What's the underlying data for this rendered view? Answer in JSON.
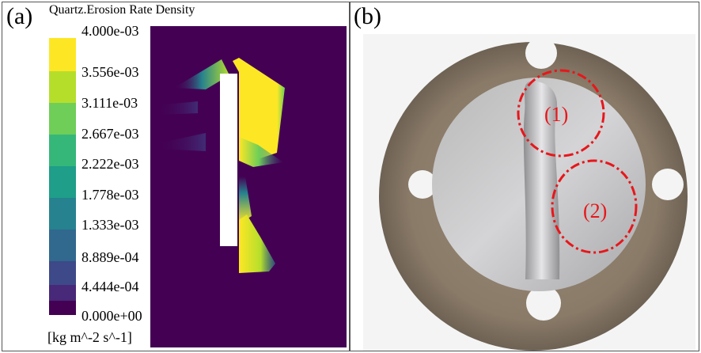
{
  "panel_a": {
    "label": "(a)",
    "colorbar": {
      "title": "Quartz.Erosion Rate Density",
      "units": "[kg m^-2 s^-1]",
      "ticks": [
        "4.000e-03",
        "3.556e-03",
        "3.111e-03",
        "2.667e-03",
        "2.222e-03",
        "1.778e-03",
        "1.333e-03",
        "8.889e-04",
        "4.444e-04",
        "0.000e+00"
      ],
      "colors": [
        "#fde725",
        "#b5de2b",
        "#6ece58",
        "#35b779",
        "#1f9e89",
        "#26828e",
        "#31688e",
        "#3e4989",
        "#482878",
        "#440154"
      ]
    }
  },
  "panel_b": {
    "label": "(b)",
    "markers": [
      {
        "label": "(1)",
        "color": "#e8161b"
      },
      {
        "label": "(2)",
        "color": "#e8161b"
      }
    ]
  }
}
